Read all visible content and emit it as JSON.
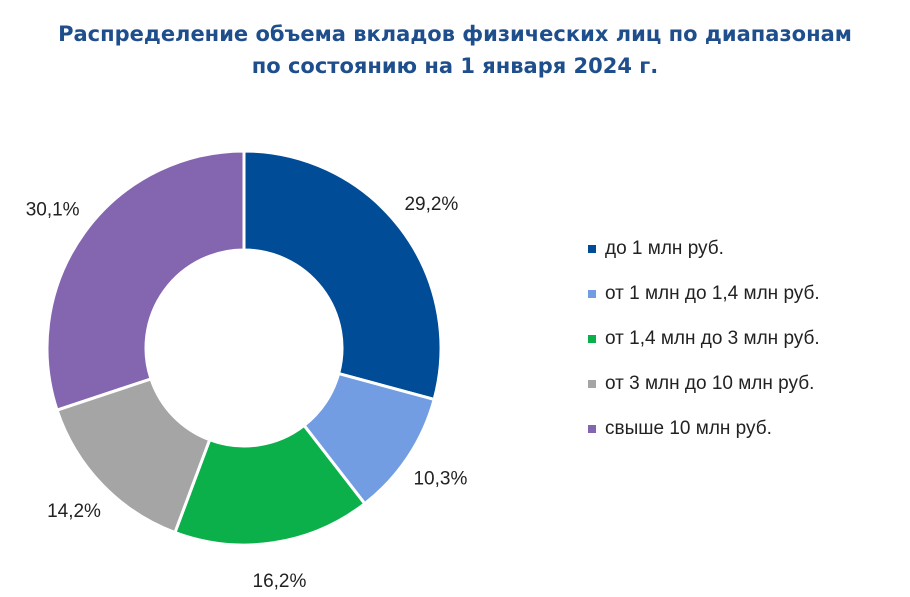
{
  "chart_data": {
    "type": "pie",
    "style": "donut",
    "title_lines": [
      "Распределение объема вкладов физических лиц по диапазонам",
      "по состоянию на 1 января 2024 г."
    ],
    "value_format": "percent_comma",
    "slices": [
      {
        "label": "до 1 млн руб.",
        "value": 29.2,
        "value_label": "29,2%",
        "color": "#004c97"
      },
      {
        "label": "от 1 млн до 1,4 млн руб.",
        "value": 10.3,
        "value_label": "10,3%",
        "color": "#739de3"
      },
      {
        "label": "от 1,4 млн до 3 млн руб.",
        "value": 16.2,
        "value_label": "16,2%",
        "color": "#0bb04b"
      },
      {
        "label": "от 3 млн до 10 млн руб.",
        "value": 14.2,
        "value_label": "14,2%",
        "color": "#a5a5a5"
      },
      {
        "label": "свыше 10 млн руб.",
        "value": 30.1,
        "value_label": "30,1%",
        "color": "#8466b0"
      }
    ],
    "legend_position": "right",
    "start_angle": "top",
    "direction": "clockwise"
  }
}
